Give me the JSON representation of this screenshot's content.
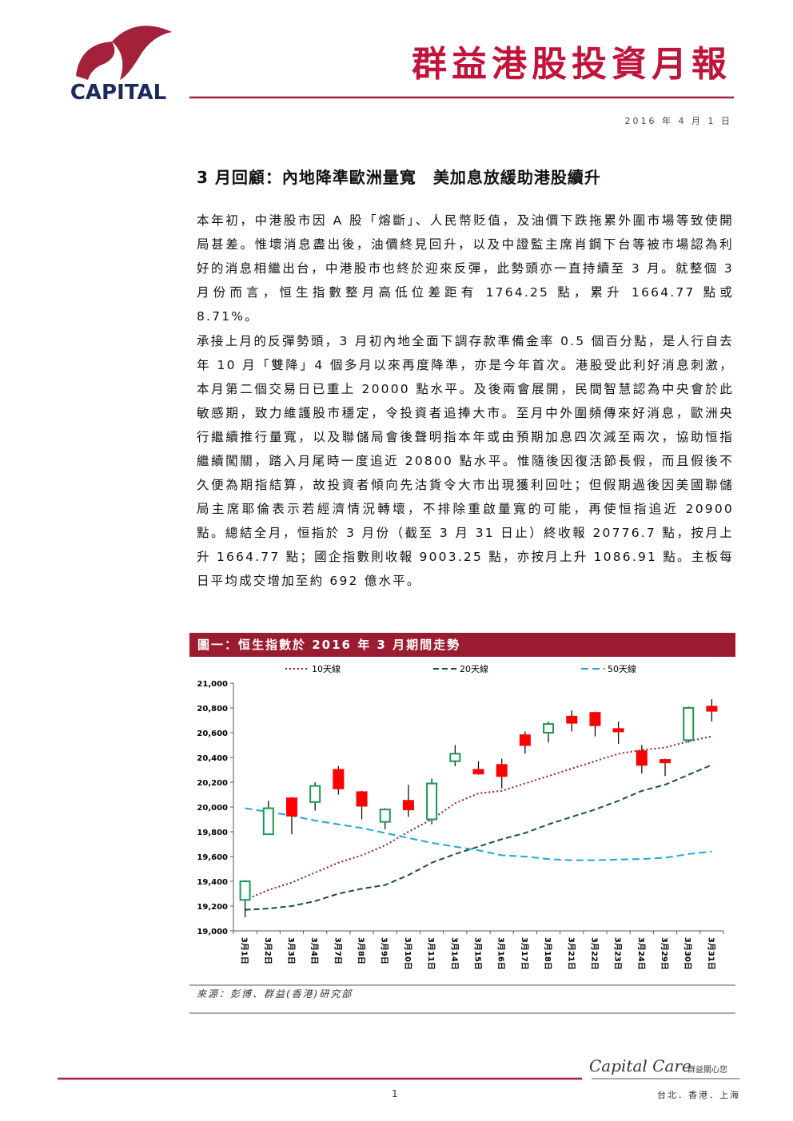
{
  "header": {
    "logo_text": "CAPITAL",
    "title": "群益港股投資月報",
    "date": "2016 年 4 月 1 日"
  },
  "article": {
    "heading": "3 月回顧：內地降準歐洲量寬　美加息放緩助港股續升",
    "paragraphs": [
      "本年初，中港股市因 A 股「熔斷」、人民幣貶值，及油價下跌拖累外圍市場等致使開局甚差。惟壞消息盡出後，油價終見回升，以及中證監主席肖鋼下台等被市場認為利好的消息相繼出台，中港股市也終於迎來反彈，此勢頭亦一直持續至 3 月。就整個 3 月份而言，恒生指數整月高低位差距有 1764.25 點，累升 1664.77 點或 8.71%。",
      "承接上月的反彈勢頭，3 月初內地全面下調存款準備金率 0.5 個百分點，是人行自去年 10 月「雙降」4 個多月以來再度降準，亦是今年首次。港股受此利好消息刺激，本月第二個交易日已重上 20000 點水平。及後兩會展開，民間智慧認為中央會於此敏感期，致力維護股市穩定，令投資者追捧大市。至月中外圍頻傳來好消息，歐洲央行繼續推行量寬，以及聯儲局會後聲明指本年或由預期加息四次減至兩次，協助恒指繼續闖關，踏入月尾時一度追近 20800 點水平。惟隨後因復活節長假，而且假後不久便為期指結算，故投資者傾向先沽貨令大市出現獲利回吐；但假期過後因美國聯儲局主席耶倫表示若經濟情況轉壞，不排除重啟量寬的可能，再使恒指追近 20900 點。總結全月，恒指於 3 月份（截至 3 月 31 日止）終收報 20776.7 點，按月上升 1664.77 點；國企指數則收報 9003.25 點，亦按月上升 1086.91 點。主板每日平均成交增加至約 692 億水平。"
    ]
  },
  "figure": {
    "caption": "圖一：恒生指數於 2016 年 3 月期間走勢",
    "source": "來源：彭博、群益(香港)研究部"
  },
  "footer": {
    "brand": "Capital Care",
    "slogan": "群益關心您",
    "page": "1",
    "locations": "台北．香港．上海"
  },
  "chart_data": {
    "type": "candlestick",
    "categories": [
      "3月1日",
      "3月2日",
      "3月3日",
      "3月4日",
      "3月7日",
      "3月8日",
      "3月9日",
      "3月10日",
      "3月11日",
      "3月14日",
      "3月15日",
      "3月16日",
      "3月17日",
      "3月18日",
      "3月21日",
      "3月22日",
      "3月23日",
      "3月24日",
      "3月29日",
      "3月30日",
      "3月31日"
    ],
    "open": [
      19250,
      19780,
      20070,
      20040,
      20300,
      20120,
      19880,
      20050,
      19900,
      20370,
      20300,
      20340,
      20580,
      20600,
      20730,
      20760,
      20630,
      20450,
      20380,
      20540,
      20810
    ],
    "high": [
      19410,
      20050,
      20080,
      20200,
      20330,
      20130,
      19990,
      20180,
      20230,
      20500,
      20370,
      20390,
      20610,
      20690,
      20780,
      20770,
      20690,
      20500,
      20390,
      20810,
      20870
    ],
    "low": [
      19110,
      19780,
      19780,
      19970,
      20100,
      19900,
      19820,
      19920,
      19860,
      20330,
      20260,
      20150,
      20430,
      20520,
      20610,
      20570,
      20510,
      20270,
      20250,
      20520,
      20690
    ],
    "close": [
      19400,
      19990,
      19930,
      20170,
      20150,
      20010,
      19980,
      19980,
      20190,
      20430,
      20270,
      20250,
      20500,
      20670,
      20680,
      20660,
      20610,
      20340,
      20360,
      20800,
      20776.7
    ],
    "up_color": "#1a9850",
    "down_color": "#ff0000",
    "series": [
      {
        "name": "10天線",
        "color": "#8b1a3a",
        "dash": "2 3",
        "values": [
          19250,
          19330,
          19390,
          19470,
          19550,
          19610,
          19690,
          19800,
          19900,
          20030,
          20110,
          20130,
          20190,
          20250,
          20310,
          20370,
          20430,
          20460,
          20480,
          20530,
          20570
        ]
      },
      {
        "name": "20天線",
        "color": "#1f4e3d",
        "dash": "7 4",
        "values": [
          19170,
          19180,
          19200,
          19240,
          19300,
          19340,
          19370,
          19450,
          19550,
          19620,
          19680,
          19740,
          19790,
          19860,
          19920,
          19980,
          20050,
          20130,
          20180,
          20260,
          20340
        ]
      },
      {
        "name": "50天線",
        "color": "#1fa6d8",
        "dash": "9 5",
        "values": [
          19990,
          19960,
          19930,
          19890,
          19860,
          19830,
          19790,
          19750,
          19710,
          19680,
          19650,
          19610,
          19600,
          19580,
          19570,
          19570,
          19575,
          19580,
          19590,
          19620,
          19640
        ]
      }
    ],
    "ylim": [
      19000,
      21000
    ],
    "yticks": [
      {
        "value": 19000,
        "label": "19,000"
      },
      {
        "value": 19200,
        "label": "19,200"
      },
      {
        "value": 19400,
        "label": "19,400"
      },
      {
        "value": 19600,
        "label": "19,600"
      },
      {
        "value": 19800,
        "label": "19,800"
      },
      {
        "value": 20000,
        "label": "20,000"
      },
      {
        "value": 20200,
        "label": "20,200"
      },
      {
        "value": 20400,
        "label": "20,400"
      },
      {
        "value": 20600,
        "label": "20,600"
      },
      {
        "value": 20800,
        "label": "20,800"
      },
      {
        "value": 21000,
        "label": "21,000"
      }
    ]
  }
}
